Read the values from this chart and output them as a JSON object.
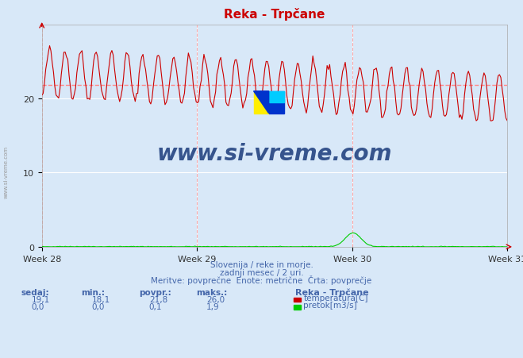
{
  "title": "Reka - Trpčane",
  "bg_color": "#d8e8f8",
  "plot_bg_color": "#d8e8f8",
  "grid_color": "#ffffff",
  "temp_color": "#cc0000",
  "pretok_color": "#00cc00",
  "avg_line_color": "#ff8888",
  "avg_line_value": 21.8,
  "x_tick_labels": [
    "Week 28",
    "Week 29",
    "Week 30",
    "Week 31"
  ],
  "ylim": [
    0,
    30
  ],
  "yticks": [
    0,
    10,
    20
  ],
  "subtitle1": "Slovenija / reke in morje.",
  "subtitle2": "zadnji mesec / 2 uri.",
  "subtitle3": "Meritve: povprečne  Enote: metrične  Črta: povprečje",
  "footer_color": "#4466aa",
  "title_color": "#cc0000",
  "watermark_text": "www.si-vreme.com",
  "temp_min": 18.1,
  "temp_avg": 21.8,
  "temp_max": 26.0,
  "temp_current": 19.1,
  "pretok_min": 0.0,
  "pretok_avg": 0.1,
  "pretok_max": 1.9,
  "pretok_current": 0.0
}
